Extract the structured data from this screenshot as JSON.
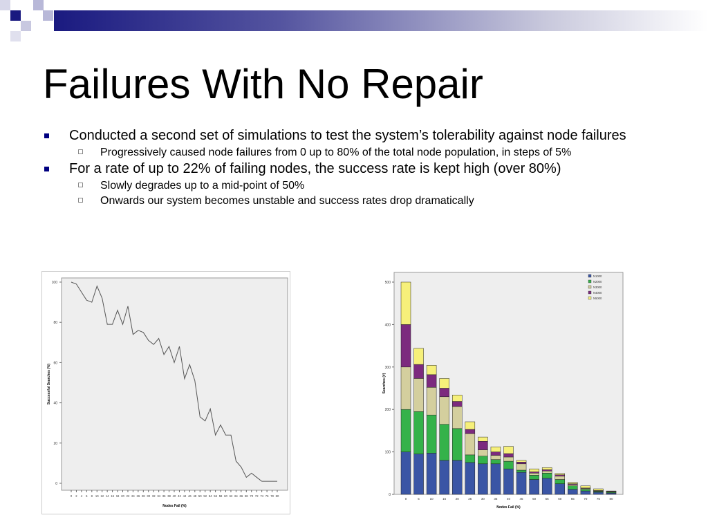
{
  "slide": {
    "title": "Failures With No Repair",
    "bullets": [
      {
        "text": "Conducted a second set of simulations to test the system’s tolerability against node failures",
        "sub": [
          "Progressively caused node failures from 0 up to 80% of the total node population, in steps of 5%"
        ]
      },
      {
        "text": "For a rate of up to 22% of failing nodes, the success rate is kept high (over 80%)",
        "sub": [
          "Slowly degrades up to a mid-point of 50%",
          "Onwards our system becomes unstable and success rates drop dramatically"
        ]
      }
    ]
  },
  "colors": {
    "bullet": "#000080",
    "line": "#555555",
    "plotBg": "#eeeeee"
  },
  "chart_data": [
    {
      "type": "line",
      "xlabel": "Nodes Fail (%)",
      "ylabel": "Successful Searches (%)",
      "ylim": [
        0,
        100
      ],
      "yticks": [
        0,
        20,
        40,
        60,
        80,
        100
      ],
      "x": [
        0,
        2,
        4,
        6,
        8,
        10,
        12,
        14,
        16,
        18,
        20,
        22,
        24,
        26,
        28,
        30,
        32,
        34,
        36,
        38,
        40,
        42,
        44,
        46,
        48,
        50,
        52,
        54,
        56,
        58,
        60,
        62,
        64,
        66,
        68,
        70,
        72,
        74,
        76,
        78,
        80
      ],
      "y": [
        100,
        99,
        95,
        91,
        90,
        98,
        92,
        79,
        79,
        86,
        79,
        88,
        74,
        76,
        75,
        71,
        69,
        72,
        64,
        68,
        60,
        68,
        52,
        59,
        51,
        33,
        31,
        37,
        24,
        29,
        24,
        24,
        11,
        8,
        3,
        5,
        3,
        1,
        1,
        1,
        1
      ],
      "grid": false
    },
    {
      "type": "bar",
      "stacked": true,
      "xlabel": "Nodes Fail (%)",
      "ylabel": "Searches (#)",
      "ylim": [
        0,
        500
      ],
      "yticks": [
        0,
        100,
        200,
        300,
        400,
        500
      ],
      "categories": [
        "0",
        "5",
        "10",
        "15",
        "20",
        "25",
        "30",
        "35",
        "40",
        "45",
        "50",
        "55",
        "60",
        "65",
        "70",
        "75",
        "80"
      ],
      "series": [
        {
          "name": "N1000",
          "color": "#3a55a5",
          "values": [
            100,
            95,
            97,
            80,
            80,
            75,
            72,
            72,
            60,
            52,
            35,
            38,
            25,
            12,
            8,
            5,
            3
          ]
        },
        {
          "name": "N2000",
          "color": "#34b24a",
          "values": [
            100,
            100,
            90,
            85,
            75,
            18,
            18,
            10,
            18,
            5,
            10,
            12,
            10,
            8,
            4,
            2,
            2
          ]
        },
        {
          "name": "N3000",
          "color": "#d4cf9e",
          "values": [
            100,
            78,
            65,
            65,
            52,
            50,
            15,
            10,
            10,
            15,
            5,
            5,
            8,
            3,
            2,
            1,
            1
          ]
        },
        {
          "name": "N4000",
          "color": "#7c2a7e",
          "values": [
            100,
            33,
            30,
            20,
            12,
            10,
            20,
            8,
            8,
            4,
            3,
            3,
            3,
            2,
            1,
            1,
            1
          ]
        },
        {
          "name": "N5000",
          "color": "#f6f07a",
          "values": [
            100,
            38,
            22,
            23,
            15,
            18,
            10,
            12,
            17,
            4,
            7,
            5,
            3,
            3,
            5,
            4,
            1
          ]
        }
      ],
      "legend": "top-right"
    }
  ]
}
